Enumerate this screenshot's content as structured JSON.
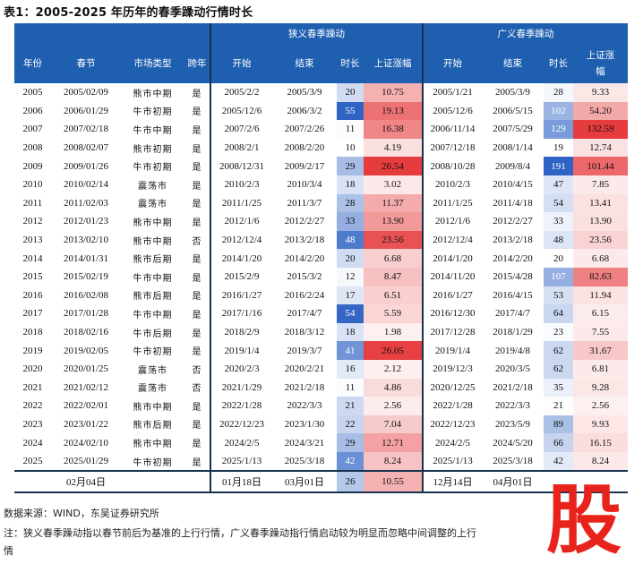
{
  "title": "表1：2005-2025 年历年的春季躁动行情时长",
  "headers": {
    "year": "年份",
    "spring": "春节",
    "market": "市场类型",
    "cross": "跨年",
    "narrow_group": "狭义春季躁动",
    "broad_group": "广义春季躁动",
    "start": "开始",
    "end": "结束",
    "duration": "时长",
    "gain": "上证涨幅",
    "gain_broad": "上证涨\n幅"
  },
  "rows": [
    {
      "year": "2005",
      "spring": "2005/02/09",
      "market": "熊市中期",
      "cross": "是",
      "n_start": "2005/2/2",
      "n_end": "2005/3/9",
      "n_dur": "20",
      "n_gain": "10.75",
      "b_start": "2005/1/21",
      "b_end": "2005/3/9",
      "b_dur": "28",
      "b_gain": "9.33"
    },
    {
      "year": "2006",
      "spring": "2006/01/29",
      "market": "牛市初期",
      "cross": "是",
      "n_start": "2005/12/6",
      "n_end": "2006/3/2",
      "n_dur": "55",
      "n_gain": "19.13",
      "b_start": "2005/12/6",
      "b_end": "2006/5/15",
      "b_dur": "102",
      "b_gain": "54.20"
    },
    {
      "year": "2007",
      "spring": "2007/02/18",
      "market": "牛市中期",
      "cross": "是",
      "n_start": "2007/2/6",
      "n_end": "2007/2/26",
      "n_dur": "11",
      "n_gain": "16.38",
      "b_start": "2006/11/14",
      "b_end": "2007/5/29",
      "b_dur": "129",
      "b_gain": "132.59"
    },
    {
      "year": "2008",
      "spring": "2008/02/07",
      "market": "熊市初期",
      "cross": "是",
      "n_start": "2008/2/1",
      "n_end": "2008/2/20",
      "n_dur": "10",
      "n_gain": "4.19",
      "b_start": "2007/12/18",
      "b_end": "2008/1/14",
      "b_dur": "19",
      "b_gain": "12.74"
    },
    {
      "year": "2009",
      "spring": "2009/01/26",
      "market": "牛市初期",
      "cross": "是",
      "n_start": "2008/12/31",
      "n_end": "2009/2/17",
      "n_dur": "29",
      "n_gain": "26.54",
      "b_start": "2008/10/28",
      "b_end": "2009/8/4",
      "b_dur": "191",
      "b_gain": "101.44"
    },
    {
      "year": "2010",
      "spring": "2010/02/14",
      "market": "震荡市",
      "cross": "是",
      "n_start": "2010/2/3",
      "n_end": "2010/3/4",
      "n_dur": "18",
      "n_gain": "3.02",
      "b_start": "2010/2/3",
      "b_end": "2010/4/15",
      "b_dur": "47",
      "b_gain": "7.85"
    },
    {
      "year": "2011",
      "spring": "2011/02/03",
      "market": "震荡市",
      "cross": "是",
      "n_start": "2011/1/25",
      "n_end": "2011/3/7",
      "n_dur": "28",
      "n_gain": "11.37",
      "b_start": "2011/1/25",
      "b_end": "2011/4/18",
      "b_dur": "54",
      "b_gain": "13.41"
    },
    {
      "year": "2012",
      "spring": "2012/01/23",
      "market": "熊市中期",
      "cross": "是",
      "n_start": "2012/1/6",
      "n_end": "2012/2/27",
      "n_dur": "33",
      "n_gain": "13.90",
      "b_start": "2012/1/6",
      "b_end": "2012/2/27",
      "b_dur": "33",
      "b_gain": "13.90"
    },
    {
      "year": "2013",
      "spring": "2013/02/10",
      "market": "熊市中期",
      "cross": "否",
      "n_start": "2012/12/4",
      "n_end": "2013/2/18",
      "n_dur": "48",
      "n_gain": "23.56",
      "b_start": "2012/12/4",
      "b_end": "2013/2/18",
      "b_dur": "48",
      "b_gain": "23.56"
    },
    {
      "year": "2014",
      "spring": "2014/01/31",
      "market": "熊市后期",
      "cross": "是",
      "n_start": "2014/1/20",
      "n_end": "2014/2/20",
      "n_dur": "20",
      "n_gain": "6.68",
      "b_start": "2014/1/20",
      "b_end": "2014/2/20",
      "b_dur": "20",
      "b_gain": "6.68"
    },
    {
      "year": "2015",
      "spring": "2015/02/19",
      "market": "牛市中期",
      "cross": "是",
      "n_start": "2015/2/9",
      "n_end": "2015/3/2",
      "n_dur": "12",
      "n_gain": "8.47",
      "b_start": "2014/11/20",
      "b_end": "2015/4/28",
      "b_dur": "107",
      "b_gain": "82.63"
    },
    {
      "year": "2016",
      "spring": "2016/02/08",
      "market": "熊市后期",
      "cross": "是",
      "n_start": "2016/1/27",
      "n_end": "2016/2/24",
      "n_dur": "17",
      "n_gain": "6.51",
      "b_start": "2016/1/27",
      "b_end": "2016/4/15",
      "b_dur": "53",
      "b_gain": "11.94"
    },
    {
      "year": "2017",
      "spring": "2017/01/28",
      "market": "牛市中期",
      "cross": "是",
      "n_start": "2017/1/16",
      "n_end": "2017/4/7",
      "n_dur": "54",
      "n_gain": "5.59",
      "b_start": "2016/12/30",
      "b_end": "2017/4/7",
      "b_dur": "64",
      "b_gain": "6.15"
    },
    {
      "year": "2018",
      "spring": "2018/02/16",
      "market": "牛市后期",
      "cross": "是",
      "n_start": "2018/2/9",
      "n_end": "2018/3/12",
      "n_dur": "18",
      "n_gain": "1.98",
      "b_start": "2017/12/28",
      "b_end": "2018/1/29",
      "b_dur": "23",
      "b_gain": "7.55"
    },
    {
      "year": "2019",
      "spring": "2019/02/05",
      "market": "牛市初期",
      "cross": "是",
      "n_start": "2019/1/4",
      "n_end": "2019/3/7",
      "n_dur": "41",
      "n_gain": "26.05",
      "b_start": "2019/1/4",
      "b_end": "2019/4/8",
      "b_dur": "62",
      "b_gain": "31.67"
    },
    {
      "year": "2020",
      "spring": "2020/01/25",
      "market": "震荡市",
      "cross": "否",
      "n_start": "2020/2/3",
      "n_end": "2020/2/21",
      "n_dur": "16",
      "n_gain": "2.12",
      "b_start": "2019/12/3",
      "b_end": "2020/3/5",
      "b_dur": "62",
      "b_gain": "6.81"
    },
    {
      "year": "2021",
      "spring": "2021/02/12",
      "market": "震荡市",
      "cross": "否",
      "n_start": "2021/1/29",
      "n_end": "2021/2/18",
      "n_dur": "11",
      "n_gain": "4.86",
      "b_start": "2020/12/25",
      "b_end": "2021/2/18",
      "b_dur": "35",
      "b_gain": "9.28"
    },
    {
      "year": "2022",
      "spring": "2022/02/01",
      "market": "熊市中期",
      "cross": "是",
      "n_start": "2022/1/28",
      "n_end": "2022/3/3",
      "n_dur": "21",
      "n_gain": "2.56",
      "b_start": "2022/1/28",
      "b_end": "2022/3/3",
      "b_dur": "21",
      "b_gain": "2.56"
    },
    {
      "year": "2023",
      "spring": "2023/01/22",
      "market": "熊市后期",
      "cross": "是",
      "n_start": "2022/12/23",
      "n_end": "2023/1/30",
      "n_dur": "22",
      "n_gain": "7.04",
      "b_start": "2022/12/23",
      "b_end": "2023/5/9",
      "b_dur": "89",
      "b_gain": "9.93"
    },
    {
      "year": "2024",
      "spring": "2024/02/10",
      "market": "熊市中期",
      "cross": "是",
      "n_start": "2024/2/5",
      "n_end": "2024/3/21",
      "n_dur": "29",
      "n_gain": "12.71",
      "b_start": "2024/2/5",
      "b_end": "2024/5/20",
      "b_dur": "66",
      "b_gain": "16.15"
    },
    {
      "year": "2025",
      "spring": "2025/01/29",
      "market": "牛市初期",
      "cross": "是",
      "n_start": "2025/1/13",
      "n_end": "2025/3/18",
      "n_dur": "42",
      "n_gain": "8.24",
      "b_start": "2025/1/13",
      "b_end": "2025/3/18",
      "b_dur": "42",
      "b_gain": "8.24"
    }
  ],
  "footer_row": {
    "spring": "02月04日",
    "n_start": "01月18日",
    "n_end": "03月01日",
    "n_dur": "26",
    "n_gain": "10.55",
    "b_start": "12月14日",
    "b_end": "04月01日"
  },
  "source": "数据来源：WIND，东吴证券研究所",
  "note": "注：狭义春季躁动指以春节前后为基准的上行行情，广义春季躁动指行情启动较为明显而忽略中间调整的上行",
  "note_cont": "情",
  "stamp": "股",
  "colors": {
    "header": "#1f5fb0",
    "text": "#111111",
    "stamp": "#e8231c"
  }
}
